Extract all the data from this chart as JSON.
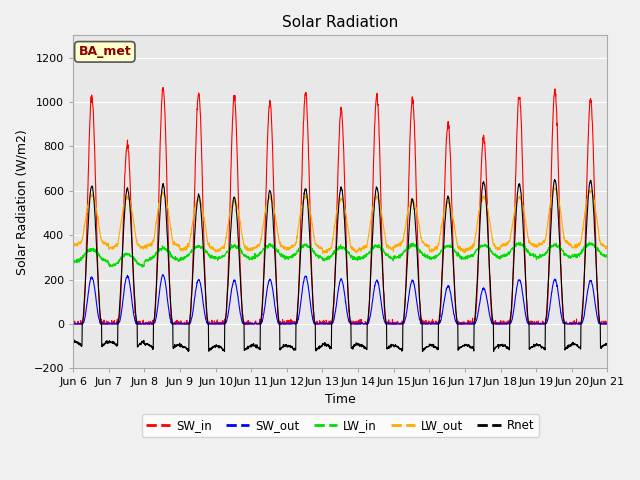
{
  "title": "Solar Radiation",
  "xlabel": "Time",
  "ylabel": "Solar Radiation (W/m2)",
  "ylim": [
    -200,
    1300
  ],
  "yticks": [
    -200,
    0,
    200,
    400,
    600,
    800,
    1000,
    1200
  ],
  "start_day": 6,
  "end_day": 21,
  "n_days": 15,
  "pts_per_day": 144,
  "SW_in_peaks": [
    1025,
    810,
    1060,
    1040,
    1020,
    1000,
    1040,
    960,
    1025,
    1010,
    900,
    840,
    1030,
    1050,
    1010
  ],
  "SW_out_peaks": [
    210,
    215,
    220,
    200,
    195,
    200,
    215,
    200,
    195,
    195,
    170,
    160,
    200,
    200,
    195
  ],
  "LW_in_base": [
    295,
    275,
    300,
    310,
    310,
    315,
    315,
    305,
    310,
    315,
    310,
    315,
    320,
    315,
    320
  ],
  "LW_out_base": [
    375,
    360,
    370,
    355,
    350,
    360,
    360,
    345,
    355,
    370,
    350,
    355,
    370,
    375,
    365
  ],
  "LW_out_peaks": [
    580,
    570,
    590,
    560,
    555,
    570,
    575,
    565,
    570,
    555,
    550,
    570,
    570,
    610,
    600
  ],
  "Rnet_peaks": [
    620,
    610,
    625,
    580,
    570,
    600,
    610,
    615,
    615,
    560,
    570,
    640,
    630,
    650,
    645
  ],
  "Rnet_night": [
    -100,
    -100,
    -110,
    -120,
    -120,
    -115,
    -120,
    -110,
    -115,
    -120,
    -115,
    -115,
    -115,
    -115,
    -110
  ],
  "colors": {
    "SW_in": "#ff0000",
    "SW_out": "#0000ff",
    "LW_in": "#00dd00",
    "LW_out": "#ffaa00",
    "Rnet": "#000000"
  },
  "fig_bg_color": "#f0f0f0",
  "ax_bg_color": "#e8e8e8",
  "annotation_text": "BA_met",
  "annotation_bg": "#ffffcc",
  "annotation_border": "#555555"
}
